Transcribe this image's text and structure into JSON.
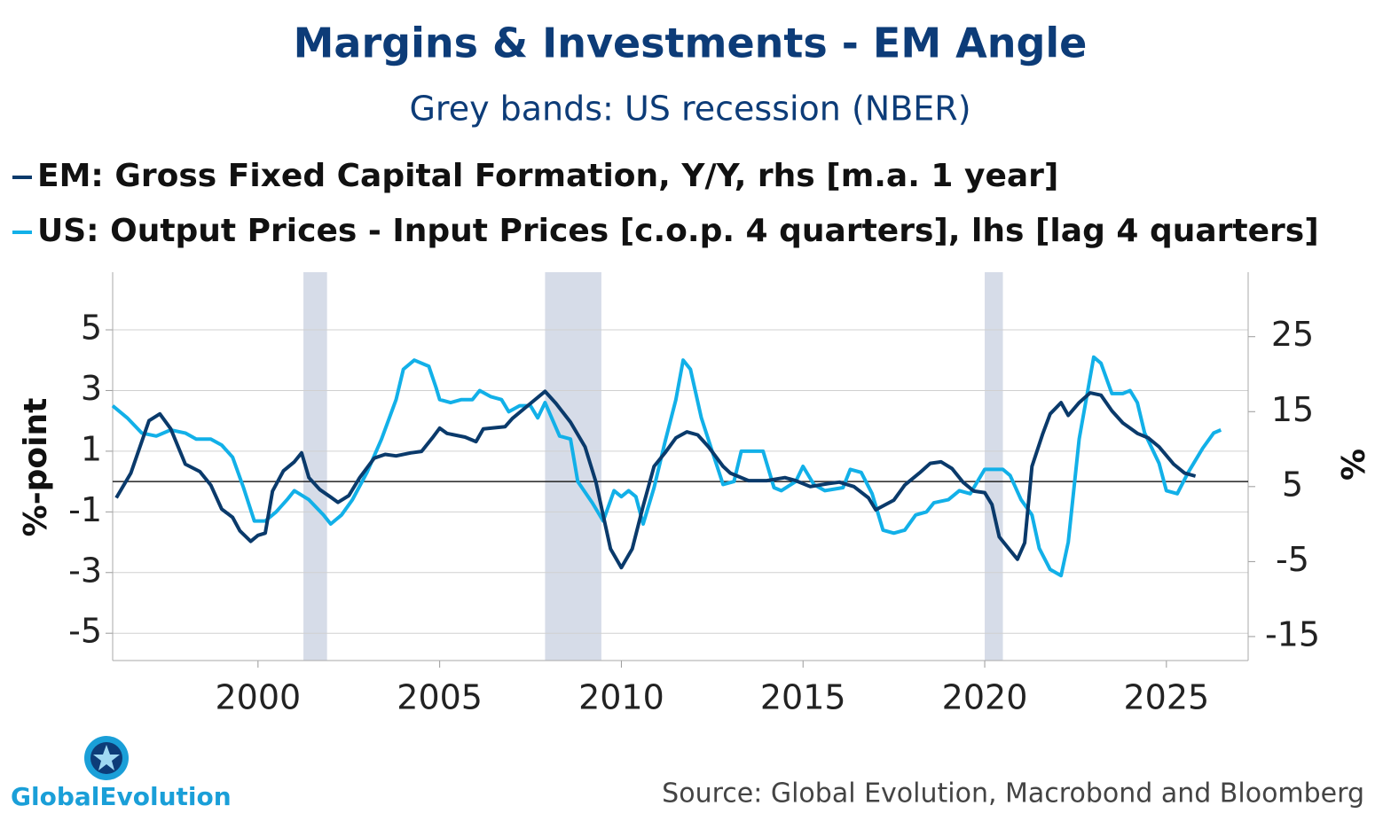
{
  "chart_data": {
    "type": "line",
    "title": "Margins & Investments - EM Angle",
    "subtitle": "Grey bands: US recession (NBER)",
    "y_label": "%-point",
    "y2_label": "%",
    "source": "Source: Global Evolution, Macrobond and Bloomberg",
    "logo": "GlobalEvolution",
    "xlim": [
      1996,
      2027.25
    ],
    "xticks": [
      2000,
      2005,
      2010,
      2015,
      2020,
      2025
    ],
    "ylim": [
      -5.9,
      6.9
    ],
    "yticks": [
      -5,
      -3,
      -1,
      1,
      3,
      5
    ],
    "y2lim": [
      -18.2,
      33.6
    ],
    "y2ticks": [
      -15,
      -5,
      5,
      15,
      25
    ],
    "grid": true,
    "hline": 0,
    "recessions": [
      [
        2001.25,
        2001.9
      ],
      [
        2007.9,
        2009.45
      ],
      [
        2020.0,
        2020.5
      ]
    ],
    "series": [
      {
        "name": "EM: Gross Fixed Capital Formation, Y/Y, rhs [m.a. 1 year]",
        "color": "#0a3a6b",
        "axis": "y2",
        "x": [
          1996.1,
          1996.5,
          1997.0,
          1997.3,
          1997.6,
          1998.0,
          1998.4,
          1998.7,
          1999.0,
          1999.3,
          1999.5,
          1999.8,
          2000.0,
          2000.2,
          2000.4,
          2000.7,
          2001.0,
          2001.2,
          2001.4,
          2001.7,
          2002.0,
          2002.2,
          2002.5,
          2002.8,
          2003.2,
          2003.5,
          2003.8,
          2004.2,
          2004.5,
          2004.8,
          2005.0,
          2005.2,
          2005.7,
          2006.0,
          2006.2,
          2006.8,
          2007.0,
          2007.5,
          2007.9,
          2008.2,
          2008.6,
          2009.0,
          2009.3,
          2009.7,
          2010.0,
          2010.3,
          2010.6,
          2010.9,
          2011.2,
          2011.5,
          2011.8,
          2012.1,
          2012.4,
          2012.8,
          2013.0,
          2013.5,
          2014.0,
          2014.5,
          2014.8,
          2015.2,
          2015.7,
          2016.0,
          2016.4,
          2016.8,
          2017.0,
          2017.5,
          2017.8,
          2018.2,
          2018.5,
          2018.8,
          2019.1,
          2019.4,
          2019.7,
          2020.0,
          2020.2,
          2020.4,
          2020.7,
          2020.9,
          2021.1,
          2021.3,
          2021.6,
          2021.8,
          2022.1,
          2022.3,
          2022.6,
          2022.9,
          2023.2,
          2023.5,
          2023.8,
          2024.2,
          2024.5,
          2024.8,
          2025.2,
          2025.5,
          2025.8
        ],
        "values": [
          3.5,
          6.8,
          13.8,
          14.7,
          12.7,
          8,
          7,
          5.2,
          2,
          0.9,
          -0.9,
          -2.3,
          -1.5,
          -1.2,
          4.4,
          7.1,
          8.3,
          9.5,
          6.2,
          4.6,
          3.6,
          2.9,
          3.8,
          6.2,
          8.8,
          9.3,
          9.1,
          9.5,
          9.7,
          11.5,
          12.8,
          12.1,
          11.6,
          11,
          12.7,
          13,
          14.1,
          16.1,
          17.7,
          16.1,
          13.6,
          10.3,
          5.6,
          -3.3,
          -5.8,
          -3.3,
          2.4,
          7.7,
          9.5,
          11.5,
          12.3,
          11.9,
          10.3,
          7.7,
          6.8,
          5.8,
          5.8,
          6.2,
          5.8,
          5,
          5.4,
          5.6,
          5,
          3.5,
          1.9,
          3.2,
          5.2,
          6.8,
          8.1,
          8.3,
          7.4,
          5.6,
          4.4,
          4.2,
          2.6,
          -1.7,
          -3.5,
          -4.7,
          -2.5,
          7.7,
          12.1,
          14.7,
          16.2,
          14.5,
          16.2,
          17.5,
          17.2,
          15.1,
          13.5,
          12.1,
          11.5,
          10.3,
          8,
          6.8,
          6.4
        ]
      },
      {
        "name": "US: Output Prices - Input Prices [c.o.p. 4 quarters], lhs [lag 4 quarters]",
        "color": "#12b0e8",
        "x": [
          1996.0,
          1996.4,
          1996.8,
          1997.2,
          1997.6,
          1998.0,
          1998.3,
          1998.7,
          1999.0,
          1999.3,
          1999.6,
          1999.9,
          2000.2,
          2000.5,
          2000.8,
          2001.0,
          2001.4,
          2001.8,
          2002.0,
          2002.3,
          2002.6,
          2003.0,
          2003.4,
          2003.8,
          2004.0,
          2004.3,
          2004.7,
          2004.9,
          2005.0,
          2005.3,
          2005.6,
          2005.9,
          2006.1,
          2006.4,
          2006.7,
          2006.9,
          2007.2,
          2007.5,
          2007.7,
          2007.9,
          2008.3,
          2008.6,
          2008.8,
          2009.2,
          2009.5,
          2009.8,
          2010.0,
          2010.2,
          2010.4,
          2010.6,
          2010.9,
          2011.2,
          2011.5,
          2011.7,
          2011.9,
          2012.2,
          2012.5,
          2012.8,
          2013.1,
          2013.3,
          2013.6,
          2013.9,
          2014.2,
          2014.4,
          2014.8,
          2015.0,
          2015.3,
          2015.6,
          2016.1,
          2016.3,
          2016.6,
          2016.9,
          2017.2,
          2017.5,
          2017.8,
          2018.1,
          2018.4,
          2018.6,
          2019.0,
          2019.3,
          2019.6,
          2020.0,
          2020.5,
          2020.7,
          2021.0,
          2021.3,
          2021.5,
          2021.8,
          2022.1,
          2022.3,
          2022.6,
          2023.0,
          2023.2,
          2023.5,
          2023.8,
          2024.0,
          2024.2,
          2024.4,
          2024.8,
          2025.0,
          2025.3,
          2025.6,
          2026.0,
          2026.3,
          2026.5
        ],
        "values": [
          2.5,
          2.1,
          1.6,
          1.5,
          1.7,
          1.6,
          1.4,
          1.4,
          1.2,
          0.8,
          -0.2,
          -1.3,
          -1.3,
          -1,
          -0.6,
          -0.3,
          -0.6,
          -1.1,
          -1.4,
          -1.1,
          -0.6,
          0.3,
          1.4,
          2.7,
          3.7,
          4,
          3.8,
          3.1,
          2.7,
          2.6,
          2.7,
          2.7,
          3,
          2.8,
          2.7,
          2.3,
          2.5,
          2.5,
          2.1,
          2.6,
          1.5,
          1.4,
          0,
          -0.7,
          -1.3,
          -0.3,
          -0.5,
          -0.3,
          -0.5,
          -1.4,
          -0.2,
          1.3,
          2.7,
          4,
          3.7,
          2.1,
          1,
          -0.1,
          0,
          1,
          1,
          1,
          -0.2,
          -0.3,
          0,
          0.5,
          -0.1,
          -0.3,
          -0.2,
          0.4,
          0.3,
          -0.4,
          -1.6,
          -1.7,
          -1.6,
          -1.1,
          -1,
          -0.7,
          -0.6,
          -0.3,
          -0.4,
          0.4,
          0.4,
          0.2,
          -0.6,
          -1.1,
          -2.2,
          -2.9,
          -3.1,
          -2,
          1.4,
          4.1,
          3.9,
          2.9,
          2.9,
          3,
          2.6,
          1.6,
          0.6,
          -0.3,
          -0.4,
          0.3,
          1.1,
          1.6,
          1.7
        ]
      }
    ]
  }
}
